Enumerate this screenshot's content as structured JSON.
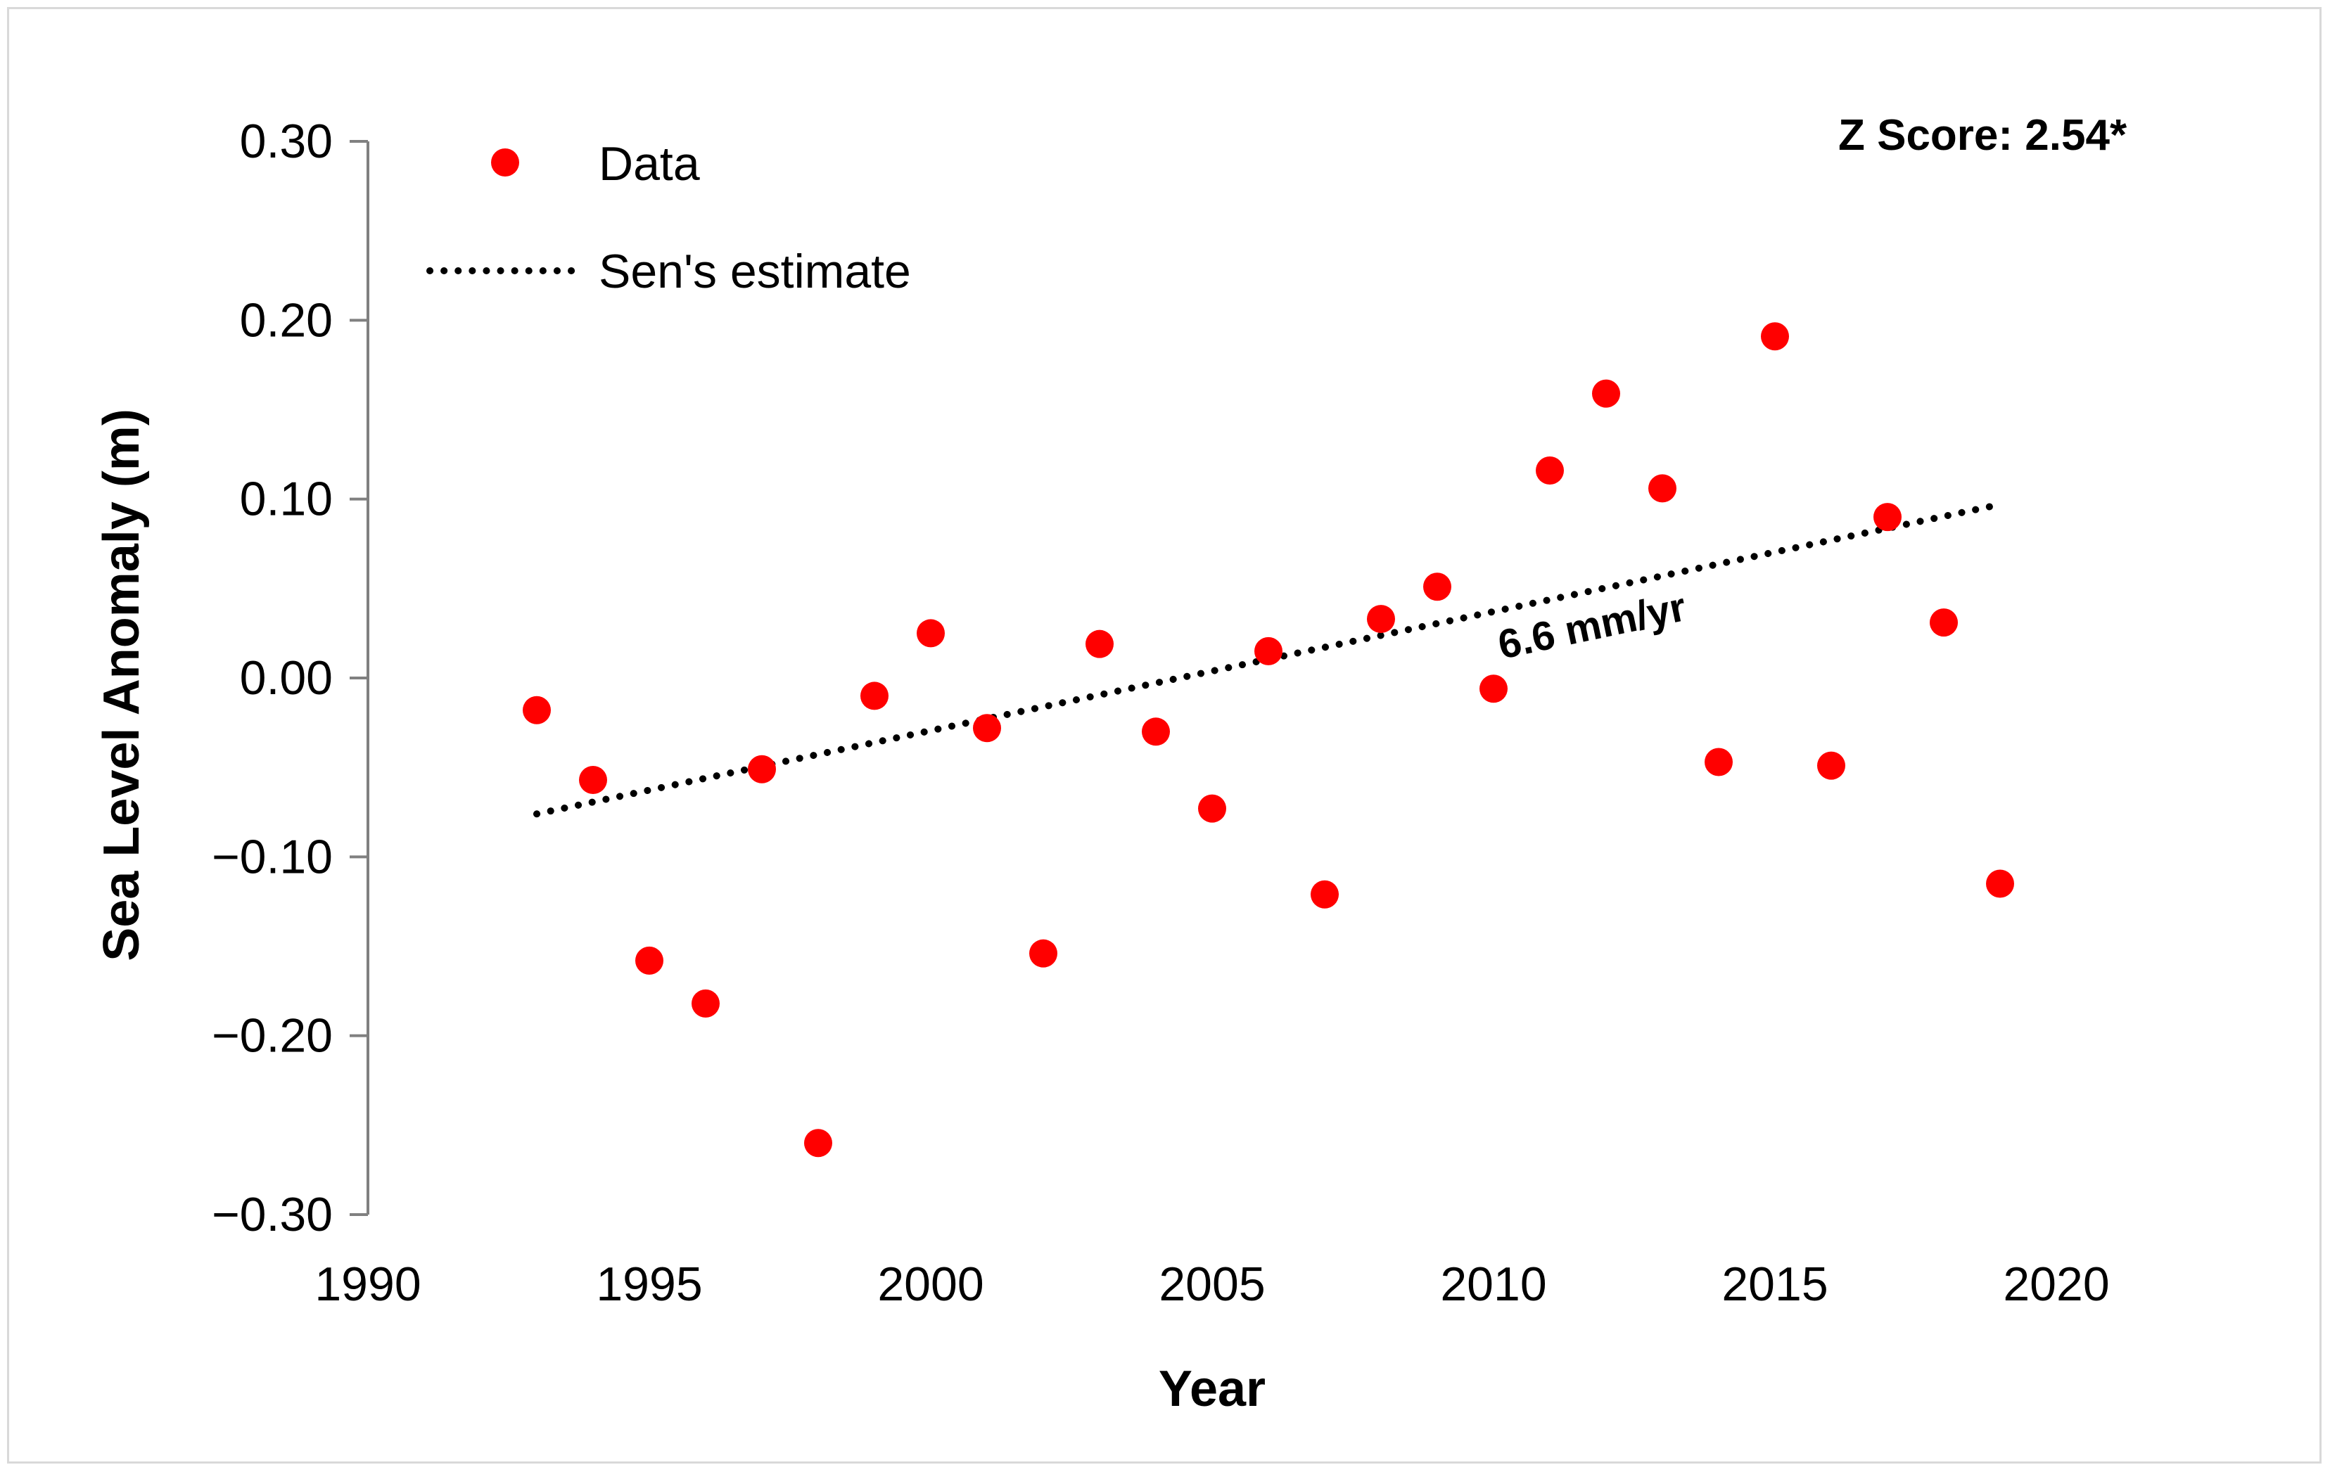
{
  "chart_data": {
    "type": "scatter",
    "title": "",
    "xlabel": "Year",
    "ylabel": "Sea Level Anomaly (m)",
    "xlim": [
      1990,
      2020
    ],
    "ylim": [
      -0.3,
      0.3
    ],
    "x_ticks": [
      "1990",
      "1995",
      "2000",
      "2005",
      "2010",
      "2015",
      "2020"
    ],
    "y_ticks": [
      "0.30",
      "0.20",
      "0.10",
      "0.00",
      "−0.10",
      "−0.20",
      "−0.30"
    ],
    "grid": false,
    "legend_position": "top-left",
    "series": [
      {
        "name": "Data",
        "kind": "scatter",
        "color": "#ff0000",
        "x": [
          1993,
          1994,
          1995,
          1996,
          1997,
          1998,
          1999,
          2000,
          2001,
          2002,
          2003,
          2004,
          2005,
          2006,
          2007,
          2008,
          2009,
          2010,
          2011,
          2012,
          2013,
          2014,
          2015,
          2016,
          2017,
          2018,
          2019
        ],
        "y": [
          -0.018,
          -0.057,
          -0.158,
          -0.182,
          -0.051,
          -0.26,
          -0.01,
          0.025,
          -0.028,
          -0.154,
          0.019,
          -0.03,
          -0.073,
          0.015,
          -0.121,
          0.033,
          0.051,
          -0.006,
          0.116,
          0.159,
          0.106,
          -0.047,
          0.191,
          -0.049,
          0.09,
          0.031,
          -0.115
        ]
      },
      {
        "name": "Sen's estimate",
        "kind": "line",
        "style": "dotted",
        "color": "#000000",
        "x": [
          1993,
          2019
        ],
        "y": [
          -0.076,
          0.097
        ]
      }
    ],
    "annotations": {
      "slope_label": "6.6 mm/yr",
      "slope_label_year": 2011.8,
      "z_score": "Z Score: 2.54*"
    }
  }
}
